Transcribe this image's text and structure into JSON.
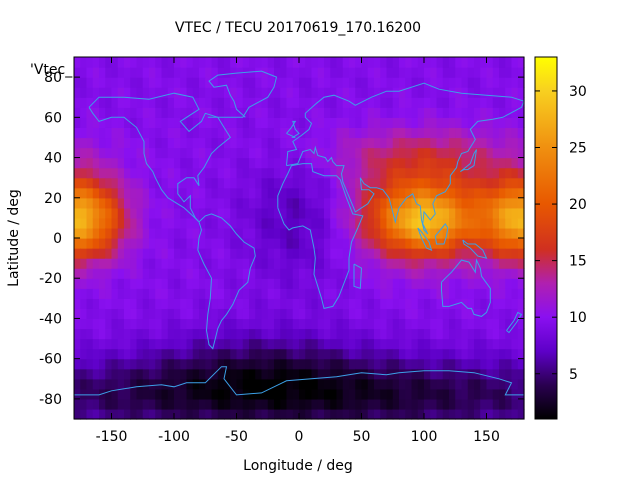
{
  "chart_data": {
    "type": "heatmap",
    "title": "VTEC / TECU 20170619_170.16200",
    "xlabel": "Longitude / deg",
    "ylabel": "Latitude / deg",
    "legend_key": "'Vtec_",
    "xlim": [
      -180,
      180
    ],
    "ylim": [
      -90,
      90
    ],
    "x_ticks": [
      -150,
      -100,
      -50,
      0,
      50,
      100,
      150
    ],
    "x_tick_labels": [
      "-150",
      "-100",
      "-50",
      "0",
      "50",
      "100",
      "150"
    ],
    "y_ticks": [
      -80,
      -60,
      -40,
      -20,
      0,
      20,
      40,
      60,
      80
    ],
    "y_tick_labels": [
      "-80",
      "-60",
      "-40",
      "-20",
      "0",
      "20",
      "40",
      "60",
      "80"
    ],
    "colorbar": {
      "range": [
        1,
        33
      ],
      "ticks": [
        5,
        10,
        15,
        20,
        25,
        30
      ],
      "tick_labels": [
        "5",
        "10",
        "15",
        "20",
        "25",
        "30"
      ],
      "stops": [
        {
          "v": 1,
          "color": "#000000"
        },
        {
          "v": 4,
          "color": "#2a0050"
        },
        {
          "v": 7,
          "color": "#5e00c8"
        },
        {
          "v": 10,
          "color": "#8a10f0"
        },
        {
          "v": 13,
          "color": "#b020b0"
        },
        {
          "v": 16,
          "color": "#d03020"
        },
        {
          "v": 20,
          "color": "#e85800"
        },
        {
          "v": 25,
          "color": "#f09010"
        },
        {
          "v": 30,
          "color": "#f8d020"
        },
        {
          "v": 33,
          "color": "#ffff00"
        }
      ]
    },
    "coastline_color": "#3ca0e8",
    "grid_resolution_deg": [
      5,
      5
    ],
    "features": [
      {
        "name": "background",
        "value": 9.5
      },
      {
        "name": "equatorial-anomaly-asia",
        "lon": 100,
        "lat": 12,
        "dlon": 38,
        "dlat": 16,
        "value": 13
      },
      {
        "name": "equatorial-anomaly-asia-core",
        "lon": 100,
        "lat": 8,
        "dlon": 22,
        "dlat": 9,
        "value": 7
      },
      {
        "name": "equatorial-anomaly-pacific",
        "lon": -168,
        "lat": 10,
        "dlon": 22,
        "dlat": 14,
        "value": 12
      },
      {
        "name": "equatorial-anomaly-east",
        "lon": 170,
        "lat": 10,
        "dlon": 20,
        "dlat": 13,
        "value": 8
      },
      {
        "name": "mid-latitude-north",
        "lon": 100,
        "lat": 42,
        "dlon": 60,
        "dlat": 10,
        "value": 4
      },
      {
        "name": "atlantic-low",
        "lon": 0,
        "lat": 10,
        "dlon": 30,
        "dlat": 22,
        "value": -3
      },
      {
        "name": "south-polar-low",
        "lon": 0,
        "lat": -78,
        "dlon": 200,
        "dlat": 14,
        "value": -7
      },
      {
        "name": "south-mid-low",
        "lon": -30,
        "lat": -62,
        "dlon": 60,
        "dlat": 14,
        "value": -3
      }
    ]
  }
}
